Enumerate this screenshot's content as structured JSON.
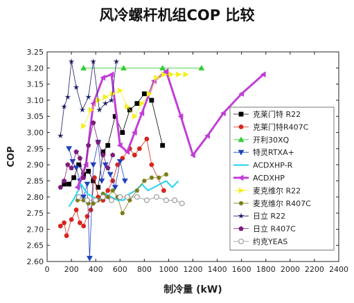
{
  "chart_data": {
    "type": "line",
    "title": "风冷螺杆机组COP 比较",
    "xlabel": "制冷量 (kW)",
    "ylabel": "COP",
    "xlim": [
      0,
      2400
    ],
    "ylim": [
      2.6,
      3.25
    ],
    "xticks": [
      0,
      200,
      400,
      600,
      800,
      1000,
      1200,
      1400,
      1600,
      1800,
      2000,
      2200,
      2400
    ],
    "yticks": [
      2.6,
      2.65,
      2.7,
      2.75,
      2.8,
      2.85,
      2.9,
      2.95,
      3.0,
      3.05,
      3.1,
      3.15,
      3.2,
      3.25
    ],
    "grid": false,
    "legend_position": "right",
    "series": [
      {
        "name": "克莱门特 R22",
        "color": "#000000",
        "marker": "square",
        "lineWidth": 0.8,
        "x": [
          140,
          180,
          220,
          260,
          300,
          340,
          380,
          420,
          460,
          500,
          560,
          620,
          680,
          740,
          800,
          860,
          950
        ],
        "y": [
          2.84,
          2.84,
          2.86,
          2.9,
          2.87,
          2.88,
          2.85,
          2.83,
          2.94,
          2.96,
          3.05,
          3.0,
          3.07,
          3.09,
          3.12,
          3.1,
          2.96
        ]
      },
      {
        "name": "克莱门特R407C",
        "color": "#d9251c",
        "marker": "circle",
        "lineWidth": 0.8,
        "x": [
          110,
          140,
          160,
          200,
          240,
          270,
          300,
          330,
          360,
          390,
          420,
          460,
          500,
          540,
          580,
          620,
          680,
          720,
          760,
          820,
          860,
          960
        ],
        "y": [
          2.71,
          2.72,
          2.68,
          2.73,
          2.76,
          2.72,
          2.71,
          2.74,
          2.76,
          2.86,
          2.8,
          2.79,
          2.82,
          2.85,
          2.9,
          2.92,
          2.95,
          2.93,
          2.95,
          2.98,
          2.9,
          2.82
        ]
      },
      {
        "name": "开利30XQ",
        "color": "#33cc33",
        "marker": "triangle-up",
        "lineWidth": 0.8,
        "x": [
          300,
          630,
          950,
          1270
        ],
        "y": [
          3.2,
          3.2,
          3.2,
          3.2
        ]
      },
      {
        "name": "特灵RTXA+",
        "color": "#1f3fbf",
        "marker": "triangle-down",
        "lineWidth": 0.8,
        "x": [
          180,
          210,
          240,
          270,
          300,
          330,
          350,
          380,
          420,
          450,
          480,
          520,
          560,
          600,
          640
        ],
        "y": [
          2.95,
          2.91,
          2.89,
          2.85,
          2.8,
          2.84,
          2.61,
          2.9,
          2.97,
          2.85,
          2.9,
          2.87,
          2.83,
          2.91,
          2.85
        ]
      },
      {
        "name": "ACDXHP-R",
        "color": "#33d6ee",
        "marker": "none",
        "lineWidth": 2.2,
        "x": [
          180,
          230,
          280,
          330,
          380,
          430,
          480,
          530,
          580,
          630,
          680,
          730,
          780,
          830,
          880,
          930,
          980,
          1030,
          1080
        ],
        "y": [
          2.77,
          2.8,
          2.84,
          2.81,
          2.8,
          2.79,
          2.81,
          2.8,
          2.79,
          2.79,
          2.81,
          2.82,
          2.84,
          2.82,
          2.83,
          2.84,
          2.85,
          2.83,
          2.85
        ]
      },
      {
        "name": "ACDXHP",
        "color": "#c03ed6",
        "marker": "triangle-left",
        "lineWidth": 3,
        "x": [
          250,
          320,
          380,
          460,
          530,
          600,
          660,
          720,
          780,
          880,
          980,
          1100,
          1200,
          1320,
          1450,
          1600,
          1780
        ],
        "y": [
          2.83,
          2.9,
          3.09,
          3.17,
          3.18,
          2.96,
          2.94,
          3.0,
          3.06,
          3.16,
          3.19,
          3.05,
          2.93,
          2.99,
          3.06,
          3.12,
          3.18
        ]
      },
      {
        "name": "麦克维尔 R22",
        "color": "#f5ef1a",
        "marker": "triangle-right",
        "lineWidth": 0.8,
        "x": [
          300,
          360,
          420,
          480,
          540,
          600,
          660,
          720,
          780,
          840,
          900,
          960,
          1020,
          1080,
          1140
        ],
        "y": [
          3.02,
          3.07,
          3.1,
          3.11,
          3.12,
          3.13,
          3.08,
          3.05,
          3.09,
          3.12,
          3.17,
          3.18,
          3.18,
          3.18,
          3.18
        ]
      },
      {
        "name": "麦克维尔 R407C",
        "color": "#7d7d1a",
        "marker": "hexagon",
        "lineWidth": 0.8,
        "x": [
          250,
          300,
          340,
          380,
          420,
          460,
          500,
          540,
          580,
          620,
          680,
          740,
          800,
          860,
          920,
          980
        ],
        "y": [
          2.79,
          2.79,
          2.78,
          2.78,
          2.79,
          2.81,
          2.8,
          2.82,
          2.8,
          2.75,
          2.79,
          2.82,
          2.85,
          2.86,
          2.86,
          2.87
        ]
      },
      {
        "name": "日立 R22",
        "color": "#1a1a66",
        "marker": "star",
        "lineWidth": 0.8,
        "x": [
          110,
          140,
          170,
          200,
          240,
          290,
          340,
          380,
          430,
          480,
          530,
          570
        ],
        "y": [
          2.99,
          3.08,
          3.11,
          3.22,
          3.14,
          3.07,
          3.11,
          3.22,
          3.07,
          3.09,
          3.1,
          3.22
        ]
      },
      {
        "name": "日立 R407C",
        "color": "#7a1f7a",
        "marker": "pentagon",
        "lineWidth": 0.8,
        "x": [
          110,
          140,
          170,
          200,
          240,
          270,
          300,
          340,
          380,
          420,
          460,
          500,
          540
        ],
        "y": [
          2.83,
          2.85,
          2.9,
          2.89,
          2.94,
          2.92,
          2.86,
          2.96,
          3.03,
          2.97,
          2.93,
          2.89,
          2.93
        ]
      },
      {
        "name": "约克YEAS",
        "color": "#8a8a8a",
        "marker": "open-circle",
        "lineWidth": 0.8,
        "x": [
          260,
          330,
          400,
          460,
          530,
          600,
          660,
          740,
          820,
          900,
          980,
          1050,
          1110
        ],
        "y": [
          2.8,
          2.79,
          2.79,
          2.8,
          2.79,
          2.8,
          2.8,
          2.8,
          2.79,
          2.8,
          2.79,
          2.79,
          2.78
        ]
      }
    ]
  }
}
